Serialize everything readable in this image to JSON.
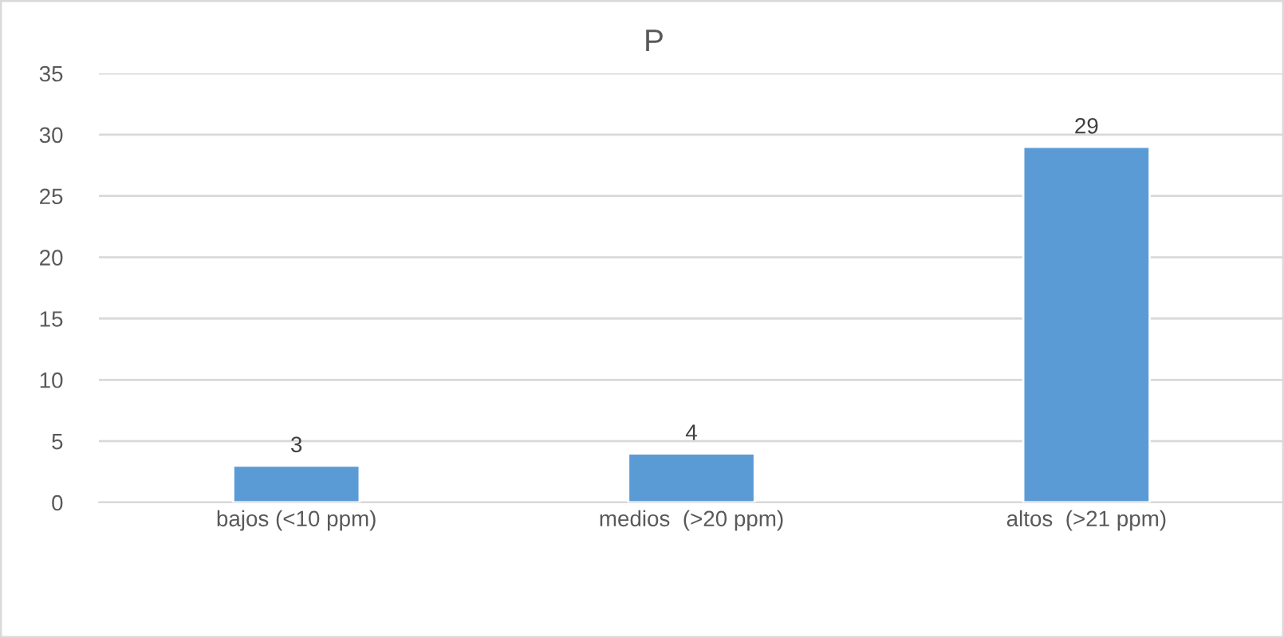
{
  "chart_data": {
    "type": "bar",
    "title": "P",
    "categories": [
      "bajos (<10 ppm)",
      "medios  (>20 ppm)",
      "altos  (>21 ppm)"
    ],
    "values": [
      3,
      4,
      29
    ],
    "color": "#5b9bd5",
    "ylim": [
      0,
      35
    ],
    "yticks": [
      0,
      5,
      10,
      15,
      20,
      25,
      30,
      35
    ],
    "grid": "y",
    "data_labels": true
  }
}
